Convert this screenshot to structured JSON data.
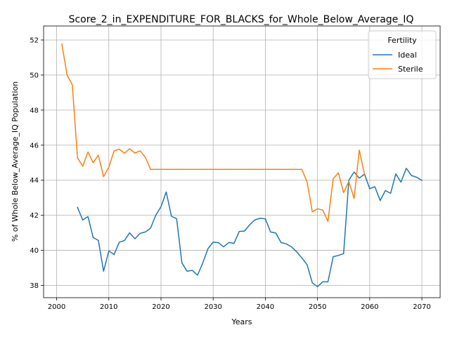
{
  "chart_data": {
    "type": "line",
    "title": "Score_2_in_EXPENDITURE_FOR_BLACKS_for_Whole_Below_Average_IQ",
    "xlabel": "Years",
    "ylabel": "% of Whole Below_Average_IQ Population",
    "xlim": [
      1997.5,
      2073.5
    ],
    "ylim": [
      37.3,
      52.8
    ],
    "xticks": [
      2000,
      2010,
      2020,
      2030,
      2040,
      2050,
      2060,
      2070
    ],
    "yticks": [
      38,
      40,
      42,
      44,
      46,
      48,
      50,
      52
    ],
    "grid": true,
    "legend": {
      "title": "Fertility",
      "placement": "top-right"
    },
    "series": [
      {
        "name": "Ideal",
        "color": "#1f77b4",
        "x": [
          2004,
          2005,
          2006,
          2007,
          2008,
          2009,
          2010,
          2011,
          2012,
          2013,
          2014,
          2015,
          2016,
          2017,
          2018,
          2019,
          2020,
          2021,
          2022,
          2023,
          2024,
          2025,
          2026,
          2027,
          2028,
          2029,
          2030,
          2031,
          2032,
          2033,
          2034,
          2035,
          2036,
          2037,
          2038,
          2039,
          2040,
          2041,
          2042,
          2043,
          2044,
          2045,
          2046,
          2047,
          2048,
          2049,
          2050,
          2051,
          2052,
          2053,
          2054,
          2055,
          2056,
          2057,
          2058,
          2059,
          2060,
          2061,
          2062,
          2063,
          2064,
          2065,
          2066,
          2067,
          2068,
          2069,
          2070
        ],
        "y": [
          42.45,
          41.73,
          41.93,
          40.73,
          40.57,
          38.81,
          39.97,
          39.76,
          40.46,
          40.56,
          41.0,
          40.66,
          40.97,
          41.05,
          41.26,
          42.01,
          42.49,
          43.33,
          41.95,
          41.8,
          39.29,
          38.81,
          38.86,
          38.58,
          39.27,
          40.1,
          40.47,
          40.44,
          40.2,
          40.45,
          40.4,
          41.08,
          41.1,
          41.46,
          41.74,
          41.83,
          41.8,
          41.05,
          40.99,
          40.45,
          40.37,
          40.2,
          39.92,
          39.57,
          39.18,
          38.15,
          37.93,
          38.21,
          38.2,
          39.64,
          39.71,
          39.81,
          44.0,
          44.47,
          44.12,
          44.35,
          43.52,
          43.63,
          42.84,
          43.41,
          43.25,
          44.36,
          43.89,
          44.68,
          44.27,
          44.17,
          43.99
        ]
      },
      {
        "name": "Sterile",
        "color": "#ff7f0e",
        "x": [
          2001,
          2002,
          2003,
          2004,
          2005,
          2006,
          2007,
          2008,
          2009,
          2010,
          2011,
          2012,
          2013,
          2014,
          2015,
          2016,
          2017,
          2018,
          2019,
          2020,
          2021,
          2022,
          2023,
          2024,
          2025,
          2026,
          2027,
          2028,
          2029,
          2030,
          2031,
          2032,
          2033,
          2034,
          2035,
          2036,
          2037,
          2038,
          2039,
          2040,
          2041,
          2042,
          2043,
          2044,
          2045,
          2046,
          2047,
          2048,
          2049,
          2050,
          2051,
          2052,
          2053,
          2054,
          2055,
          2056,
          2057,
          2058,
          2059
        ],
        "y": [
          51.77,
          50.0,
          49.45,
          45.28,
          44.8,
          45.61,
          45.0,
          45.43,
          44.2,
          44.75,
          45.67,
          45.77,
          45.54,
          45.8,
          45.55,
          45.68,
          45.31,
          44.62,
          44.62,
          44.62,
          44.62,
          44.62,
          44.62,
          44.62,
          44.62,
          44.62,
          44.62,
          44.62,
          44.62,
          44.62,
          44.62,
          44.62,
          44.62,
          44.62,
          44.62,
          44.62,
          44.62,
          44.62,
          44.62,
          44.62,
          44.62,
          44.62,
          44.62,
          44.62,
          44.62,
          44.62,
          44.62,
          43.9,
          42.2,
          42.37,
          42.3,
          41.65,
          44.09,
          44.42,
          43.29,
          43.93,
          42.96,
          45.72,
          44.35
        ]
      }
    ]
  }
}
